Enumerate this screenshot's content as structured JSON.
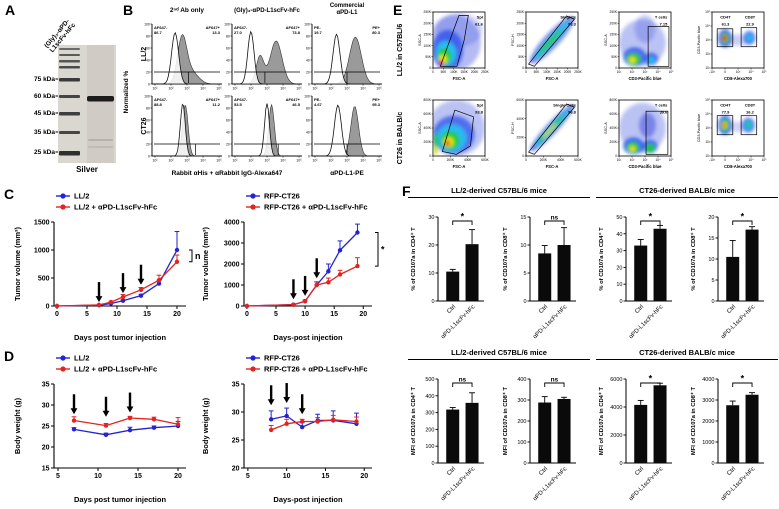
{
  "panel_labels": {
    "A": "A",
    "B": "B",
    "C": "C",
    "D": "D",
    "E": "E",
    "F": "F"
  },
  "panelA": {
    "lane_title_line1": "(Gly)₃-αPD-",
    "lane_title_line2": "L1scFv-hFc",
    "markers": [
      "75 kDa",
      "60 kDa",
      "45 kDa",
      "35 kDa",
      "25 kDa"
    ],
    "caption": "Silver"
  },
  "panelB": {
    "col_titles": [
      "2ⁿᵈ Ab only",
      "(Gly)₃-αPD-L1scFv-hFc",
      "Commercial αPD-L1"
    ],
    "row_titles": [
      "LL/2",
      "CT26"
    ],
    "y_axis_label": "Normalized %",
    "x_group_labels": [
      "Rabbit αHis + αRabbit IgG-Alexa647",
      "αPD-L1-PE"
    ],
    "yticks": [
      "0",
      "20",
      "40",
      "60",
      "80",
      "100"
    ],
    "xticks_log": [
      "10¹",
      "10²",
      "10³",
      "10⁴",
      "10⁵"
    ],
    "plots": [
      {
        "row": "LL/2",
        "neg_label": "AF647-",
        "neg_value": "86.7",
        "pos_label": "AF647+",
        "pos_value": "13.3"
      },
      {
        "row": "LL/2",
        "neg_label": "AF647-",
        "neg_value": "27.0",
        "pos_label": "AF647+",
        "pos_value": "73.8"
      },
      {
        "row": "LL/2",
        "neg_label": "PE-",
        "neg_value": "19.7",
        "pos_label": "PE+",
        "pos_value": "80.3"
      },
      {
        "row": "CT26",
        "neg_label": "AF647-",
        "neg_value": "88.8",
        "pos_label": "AF647+",
        "pos_value": "11.2"
      },
      {
        "row": "CT26",
        "neg_label": "AF647-",
        "neg_value": "53.5",
        "pos_label": "AF647+",
        "pos_value": "46.5"
      },
      {
        "row": "CT26",
        "neg_label": "PE-",
        "neg_value": "4.67",
        "pos_label": "PE+",
        "pos_value": "95.3"
      }
    ]
  },
  "panelE": {
    "row_titles": [
      "LL/2 in C57BL/6",
      "CT26 in BALB/c"
    ],
    "rows": [
      {
        "plots": [
          {
            "shape": "spl1",
            "xlabel": "FSC-A",
            "ylabel": "SSC-A",
            "xticks": [
              "0",
              "50K",
              "100K",
              "150K",
              "200K",
              "250K"
            ],
            "yticks": [
              "0",
              "50K",
              "100K",
              "150K",
              "200K",
              "250K"
            ],
            "gates": [
              {
                "name": "Spl",
                "value": "61.6"
              }
            ]
          },
          {
            "shape": "sing1",
            "xlabel": "FSC-A",
            "ylabel": "FSC-H",
            "xticks": [
              "0",
              "50K",
              "100K",
              "150K",
              "200K",
              "250K"
            ],
            "yticks": [
              "0",
              "50K",
              "100K",
              "150K",
              "200K",
              "250K"
            ],
            "gates": [
              {
                "name": "Singlets",
                "value": "93.3"
              }
            ]
          },
          {
            "shape": "tc1",
            "xlabel": "CD3-Pacific blue",
            "ylabel": "SSC-A",
            "xticks": [
              "10¹",
              "10²",
              "10³",
              "10⁴",
              "10⁵"
            ],
            "yticks": [
              "0",
              "50K",
              "100K",
              "150K",
              "200K",
              "250K"
            ],
            "gates": [
              {
                "name": "T cells",
                "value": "7.15"
              }
            ]
          },
          {
            "shape": "cd1",
            "xlabel": "CD8-Alexa700",
            "ylabel": "CD3-Pacific blue",
            "xticks": [
              "-10³",
              "0",
              "10³",
              "10⁴",
              "10⁵"
            ],
            "yticks": [
              "10¹",
              "10²",
              "10³",
              "10⁴",
              "10⁵"
            ],
            "gates": [
              {
                "name": "CD4T",
                "value": "61.3"
              },
              {
                "name": "CD8T",
                "value": "22.9"
              }
            ]
          }
        ]
      },
      {
        "plots": [
          {
            "shape": "spl2",
            "xlabel": "FSC-A",
            "ylabel": "SSC-A",
            "xticks": [
              "0",
              "200K",
              "400K",
              "600K"
            ],
            "yticks": [
              "0",
              "200K",
              "400K",
              "600K",
              "800K"
            ],
            "gates": [
              {
                "name": "Spl",
                "value": "93.8"
              }
            ]
          },
          {
            "shape": "sing2",
            "xlabel": "FSC-A",
            "ylabel": "FSC-H",
            "xticks": [
              "0",
              "200K",
              "400K",
              "600K"
            ],
            "yticks": [
              "0",
              "200K",
              "400K",
              "600K"
            ],
            "gates": [
              {
                "name": "Single Cells",
                "value": "96.8"
              }
            ]
          },
          {
            "shape": "tc2",
            "xlabel": "CD3-Pacific blue",
            "ylabel": "SSC-A",
            "xticks": [
              "10¹",
              "10²",
              "10³",
              "10⁴",
              "10⁵"
            ],
            "yticks": [
              "0",
              "200K",
              "400K",
              "600K",
              "800K"
            ],
            "gates": [
              {
                "name": "T cells",
                "value": "39.6"
              }
            ]
          },
          {
            "shape": "cd2",
            "xlabel": "CD8-Alexa700",
            "ylabel": "CD3-Pacific blue",
            "xticks": [
              "-10³",
              "0",
              "10³",
              "10⁴",
              "10⁵"
            ],
            "yticks": [
              "10¹",
              "10²",
              "10³",
              "10⁴",
              "10⁵"
            ],
            "gates": [
              {
                "name": "CD4T",
                "value": "77.9"
              },
              {
                "name": "CD8T",
                "value": "16.2"
              }
            ]
          }
        ]
      }
    ]
  },
  "panelF": {
    "pair_titles": [
      [
        "LL/2-derived C57BL/6 mice",
        "CT26-derived BALB/c mice"
      ],
      [
        "LL/2-derived C57BL/6 mice",
        "CT26-derived BALB/c mice"
      ]
    ]
  },
  "chart_data": [
    {
      "id": "C-left",
      "type": "line",
      "xlabel": "Days post tumor injection",
      "ylabel": "Tumor volume (mm³)",
      "xlim": [
        -0.5,
        21.5
      ],
      "ylim": [
        0,
        1500
      ],
      "xticks": [
        0,
        5,
        10,
        15,
        20
      ],
      "yticks": [
        0,
        500,
        1000,
        1500
      ],
      "series": [
        {
          "name": "LL/2",
          "color": "#2323d2",
          "x": [
            0,
            7,
            9,
            11,
            14,
            17,
            20
          ],
          "y": [
            0,
            15,
            45,
            95,
            185,
            400,
            1000
          ],
          "err": [
            0,
            5,
            10,
            15,
            25,
            60,
            330
          ]
        },
        {
          "name": "LL/2 + αPD-L1scFv-hFc",
          "color": "#e32222",
          "x": [
            0,
            7,
            9,
            11,
            14,
            17,
            20
          ],
          "y": [
            0,
            20,
            70,
            160,
            290,
            460,
            790
          ],
          "err": [
            0,
            5,
            15,
            45,
            40,
            90,
            120
          ]
        }
      ],
      "arrows": [
        {
          "x": 7,
          "tip": 70
        },
        {
          "x": 11,
          "tip": 230
        },
        {
          "x": 14,
          "tip": 380
        }
      ],
      "sig": {
        "label": "n",
        "y1": 790,
        "y2": 1000
      }
    },
    {
      "id": "C-right",
      "type": "line",
      "xlabel": "Days-post injection",
      "ylabel": "Tumor volume (mm³)",
      "xlim": [
        -0.5,
        21.5
      ],
      "ylim": [
        0,
        4000
      ],
      "xticks": [
        0,
        5,
        10,
        15,
        20
      ],
      "yticks": [
        0,
        1000,
        2000,
        3000,
        4000
      ],
      "series": [
        {
          "name": "RFP-CT26",
          "color": "#2323d2",
          "x": [
            0,
            8,
            10,
            12,
            14,
            16,
            19
          ],
          "y": [
            0,
            60,
            230,
            1000,
            1650,
            2650,
            3500
          ],
          "err": [
            0,
            20,
            60,
            150,
            350,
            450,
            400
          ]
        },
        {
          "name": "RFP-CT26 + αPD-L1scFv-hFc",
          "color": "#e32222",
          "x": [
            0,
            8,
            10,
            12,
            14,
            16,
            19
          ],
          "y": [
            0,
            60,
            230,
            1000,
            1130,
            1500,
            1900
          ],
          "err": [
            0,
            20,
            60,
            150,
            200,
            200,
            400
          ]
        }
      ],
      "arrows": [
        {
          "x": 8,
          "tip": 320
        },
        {
          "x": 10,
          "tip": 480
        },
        {
          "x": 12,
          "tip": 1320
        }
      ],
      "sig": {
        "label": "*",
        "y1": 1900,
        "y2": 3500
      }
    },
    {
      "id": "D-left",
      "type": "line",
      "xlabel": "Days post tumor injection",
      "ylabel": "Body weight (g)",
      "xlim": [
        4.5,
        21
      ],
      "ylim": [
        15,
        35
      ],
      "xticks": [
        5,
        10,
        15,
        20
      ],
      "yticks": [
        15,
        20,
        25,
        30,
        35
      ],
      "series": [
        {
          "name": "LL/2",
          "color": "#2323d2",
          "x": [
            7,
            11,
            14,
            17,
            20
          ],
          "y": [
            24.2,
            22.9,
            24.0,
            24.6,
            25.0
          ],
          "err": [
            0.4,
            0.4,
            0.7,
            0.4,
            1.1
          ]
        },
        {
          "name": "LL/2 + αPD-L1scFv-hFc",
          "color": "#e32222",
          "x": [
            7,
            11,
            14,
            17,
            20
          ],
          "y": [
            26.3,
            25.1,
            26.9,
            26.6,
            25.4
          ],
          "err": [
            0.9,
            0.5,
            0.4,
            0.5,
            1.6
          ]
        }
      ],
      "arrows": [
        {
          "x": 7,
          "tip": 27.8
        },
        {
          "x": 11,
          "tip": 27.2
        },
        {
          "x": 14,
          "tip": 28.2
        }
      ]
    },
    {
      "id": "D-right",
      "type": "line",
      "xlabel": "Days-post injection",
      "ylabel": "Body weight (g)",
      "xlim": [
        4.5,
        21
      ],
      "ylim": [
        20,
        35
      ],
      "xticks": [
        5,
        10,
        15,
        20
      ],
      "yticks": [
        20,
        25,
        30,
        35
      ],
      "series": [
        {
          "name": "RFP-CT26",
          "color": "#2323d2",
          "x": [
            8,
            10,
            12,
            14,
            16,
            19
          ],
          "y": [
            28.7,
            29.3,
            27.3,
            28.5,
            28.5,
            27.9
          ],
          "err": [
            1.5,
            1.4,
            0.8,
            1.1,
            1.7,
            1.9
          ]
        },
        {
          "name": "RFP-CT26 + αPD-L1scFv-hFc",
          "color": "#e32222",
          "x": [
            8,
            10,
            12,
            14,
            16,
            19
          ],
          "y": [
            26.8,
            27.9,
            28.3,
            28.3,
            28.6,
            28.3
          ],
          "err": [
            0.8,
            0.8,
            0.4,
            0.7,
            0.8,
            0.8
          ]
        }
      ],
      "arrows": [
        {
          "x": 8,
          "tip": 31.2
        },
        {
          "x": 10,
          "tip": 31.6
        },
        {
          "x": 12,
          "tip": 29.6
        }
      ]
    },
    {
      "id": "F-1",
      "type": "bar",
      "ylabel": "% of CD107a in CD4⁺ T",
      "ylim": [
        0,
        30
      ],
      "yticks": [
        0,
        10,
        20,
        30
      ],
      "categories": [
        "Ctrl",
        "αPD-L1scFv-hFc"
      ],
      "values": [
        10.5,
        20.3
      ],
      "err": [
        0.8,
        5.2
      ],
      "sig": "*"
    },
    {
      "id": "F-2",
      "type": "bar",
      "ylabel": "% of CD107a in CD8⁺ T",
      "ylim": [
        0,
        15
      ],
      "yticks": [
        0,
        5,
        10,
        15
      ],
      "categories": [
        "Ctrl",
        "αPD-L1scFv-hFc"
      ],
      "values": [
        8.5,
        10.0
      ],
      "err": [
        1.4,
        3.1
      ],
      "sig": "ns"
    },
    {
      "id": "F-3",
      "type": "bar",
      "ylabel": "% of CD107a in CD4⁺ T",
      "ylim": [
        0,
        50
      ],
      "yticks": [
        0,
        10,
        20,
        30,
        40,
        50
      ],
      "categories": [
        "Ctrl",
        "αPD-L1scFv-hFc"
      ],
      "values": [
        33,
        43
      ],
      "err": [
        3.6,
        2.0
      ],
      "sig": "*"
    },
    {
      "id": "F-4",
      "type": "bar",
      "ylabel": "% of CD107a in CD8⁺ T",
      "ylim": [
        0,
        20
      ],
      "yticks": [
        0,
        5,
        10,
        15,
        20
      ],
      "categories": [
        "Ctrl",
        "αPD-L1scFv-hFc"
      ],
      "values": [
        10.5,
        17.0
      ],
      "err": [
        3.9,
        0.7
      ],
      "sig": "*"
    },
    {
      "id": "F-5",
      "type": "bar",
      "ylabel": "MFI of CD107a in CD4⁺ T",
      "ylim": [
        0,
        500
      ],
      "yticks": [
        0,
        100,
        200,
        300,
        400,
        500
      ],
      "categories": [
        "Ctrl",
        "αPD-L1scFv-hFc"
      ],
      "values": [
        318,
        358
      ],
      "err": [
        12,
        60
      ],
      "sig": "ns"
    },
    {
      "id": "F-6",
      "type": "bar",
      "ylabel": "MFI of CD107a in CD8⁺ T",
      "ylim": [
        0,
        400
      ],
      "yticks": [
        0,
        100,
        200,
        300,
        400
      ],
      "categories": [
        "Ctrl",
        "αPD-L1scFv-hFc"
      ],
      "values": [
        288,
        305
      ],
      "err": [
        28,
        8
      ],
      "sig": "ns"
    },
    {
      "id": "F-7",
      "type": "bar",
      "ylabel": "MFI of CD107a in CD4⁺ T",
      "ylim": [
        0,
        6000
      ],
      "yticks": [
        0,
        2000,
        4000,
        6000
      ],
      "categories": [
        "Ctrl",
        "αPD-L1scFv-hFc"
      ],
      "values": [
        4150,
        5550
      ],
      "err": [
        320,
        150
      ],
      "sig": "*"
    },
    {
      "id": "F-8",
      "type": "bar",
      "ylabel": "MFI of CD107a in CD8⁺ T",
      "ylim": [
        0,
        4000
      ],
      "yticks": [
        0,
        1000,
        2000,
        3000,
        4000
      ],
      "categories": [
        "Ctrl",
        "αPD-L1scFv-hFc"
      ],
      "values": [
        2750,
        3250
      ],
      "err": [
        200,
        100
      ],
      "sig": "*"
    }
  ]
}
